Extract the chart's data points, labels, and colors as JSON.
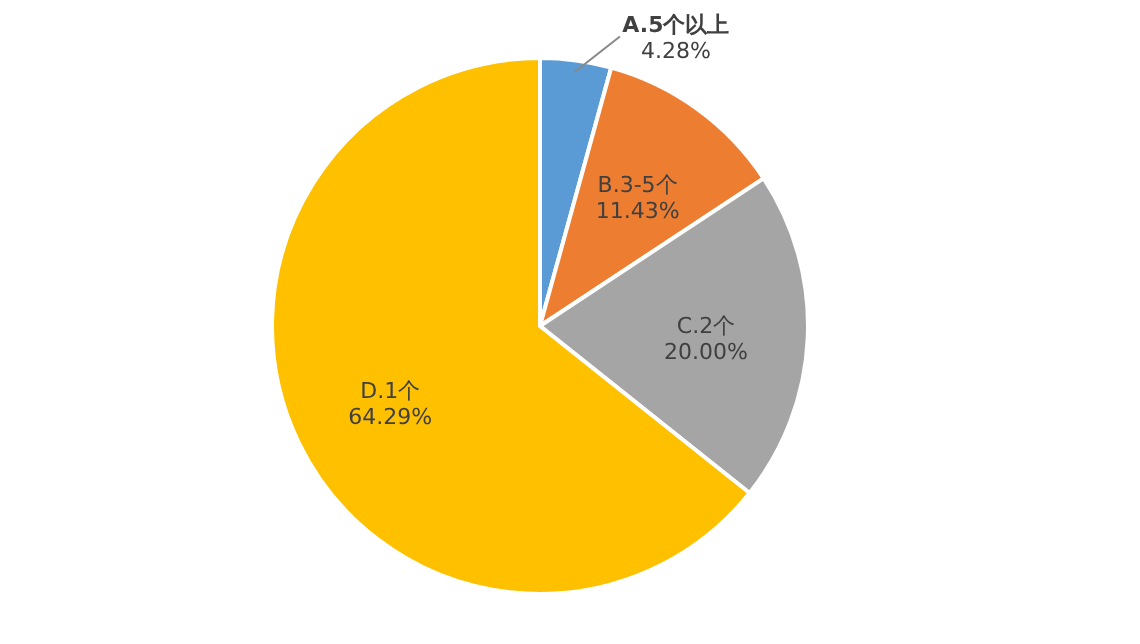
{
  "chart_data": {
    "type": "pie",
    "categories": [
      "A.5个以上",
      "B.3-5个",
      "C.2个",
      "D.1个"
    ],
    "values": [
      4.28,
      11.43,
      20.0,
      64.29
    ],
    "value_labels": [
      "4.28%",
      "11.43%",
      "20.00%",
      "64.29%"
    ],
    "colors": [
      "#5b9bd5",
      "#ed7d31",
      "#a5a5a5",
      "#ffc000"
    ]
  }
}
